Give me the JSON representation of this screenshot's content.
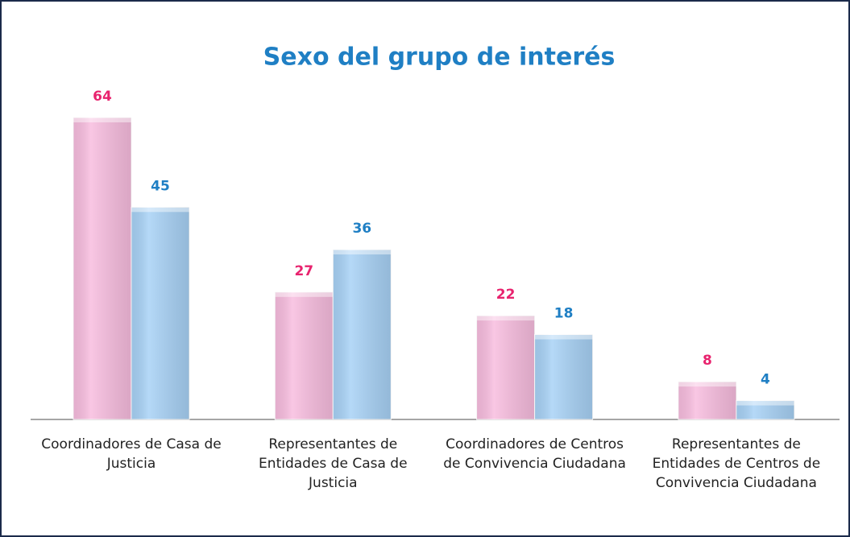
{
  "chart_data": {
    "type": "bar",
    "title": "Sexo del grupo de interés",
    "categories": [
      "Coordinadores de Casa de Justicia",
      "Representantes de Entidades de Casa de Justicia",
      "Coordinadores de Centros de Convivencia Ciudadana",
      "Representantes de Entidades de Centros de Convivencia Ciudadana"
    ],
    "series": [
      {
        "color": "#f8bddf",
        "label_color": "#e8236e",
        "values": [
          64,
          27,
          22,
          8
        ]
      },
      {
        "color": "#a8d2f6",
        "label_color": "#1f7fc4",
        "values": [
          45,
          36,
          18,
          4
        ]
      }
    ]
  }
}
